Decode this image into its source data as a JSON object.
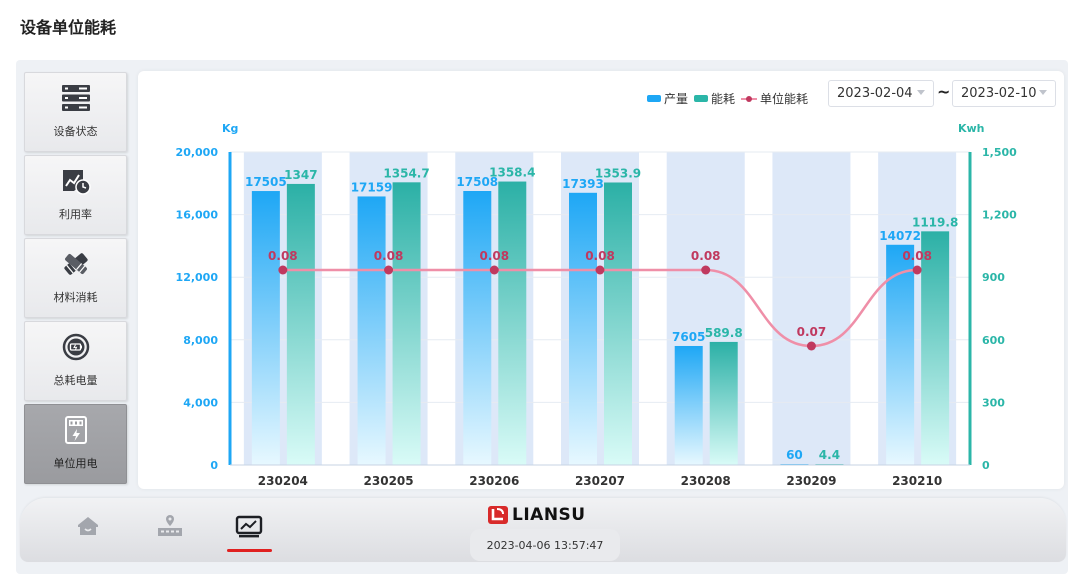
{
  "page": {
    "title": "设备单位能耗"
  },
  "sidebar": {
    "items": [
      {
        "label": "设备状态",
        "icon": "server-rack-icon",
        "active": false
      },
      {
        "label": "利用率",
        "icon": "chart-clock-icon",
        "active": false
      },
      {
        "label": "材料消耗",
        "icon": "material-cross-icon",
        "active": false
      },
      {
        "label": "总耗电量",
        "icon": "battery-circle-icon",
        "active": false
      },
      {
        "label": "单位用电",
        "icon": "electric-meter-icon",
        "active": true
      }
    ]
  },
  "legend": {
    "output": "产量",
    "energy": "能耗",
    "unit": "单位能耗"
  },
  "date_range": {
    "start": "2023-02-04",
    "separator": "~",
    "end": "2023-02-10"
  },
  "colors": {
    "output": "#1ea7f5",
    "energy": "#2bb6a8",
    "unit_line": "#ef8fa8",
    "unit_dot": "#c0395f",
    "band": "#dde8f8",
    "accent": "#e02020"
  },
  "chart_data": {
    "type": "bar",
    "categories": [
      "230204",
      "230205",
      "230206",
      "230207",
      "230208",
      "230209",
      "230210"
    ],
    "series": [
      {
        "name": "产量",
        "axis": "left",
        "values": [
          17505,
          17159,
          17508,
          17393,
          7605,
          60,
          14072
        ]
      },
      {
        "name": "能耗",
        "axis": "right",
        "values": [
          1347,
          1354.7,
          1358.4,
          1353.9,
          589.8,
          4.4,
          1119.8
        ],
        "labels": [
          "1347",
          "1354.7",
          "1358.4",
          "1353.9",
          "589.8",
          "4.4",
          "1119.8"
        ]
      },
      {
        "name": "单位能耗",
        "type": "line",
        "values": [
          0.08,
          0.08,
          0.08,
          0.08,
          0.08,
          0.07,
          0.08
        ],
        "labels": [
          "0.08",
          "0.08",
          "0.08",
          "0.08",
          "0.08",
          "0.07",
          "0.08"
        ]
      }
    ],
    "y_left": {
      "label": "Kg",
      "ylim": [
        0,
        20000
      ],
      "ticks": [
        "0",
        "4,000",
        "8,000",
        "12,000",
        "16,000",
        "20,000"
      ]
    },
    "y_right": {
      "label": "Kwh",
      "ylim": [
        0,
        1500
      ],
      "ticks": [
        "0",
        "300",
        "600",
        "900",
        "1,200",
        "1,500"
      ]
    },
    "legend_position": "top-right",
    "grid": true
  },
  "bottom_nav": {
    "items": [
      {
        "icon": "home-icon"
      },
      {
        "icon": "factory-location-icon"
      },
      {
        "icon": "monitor-chart-icon",
        "active": true
      }
    ],
    "brand": "LIANSU",
    "timestamp": "2023-04-06 13:57:47"
  }
}
